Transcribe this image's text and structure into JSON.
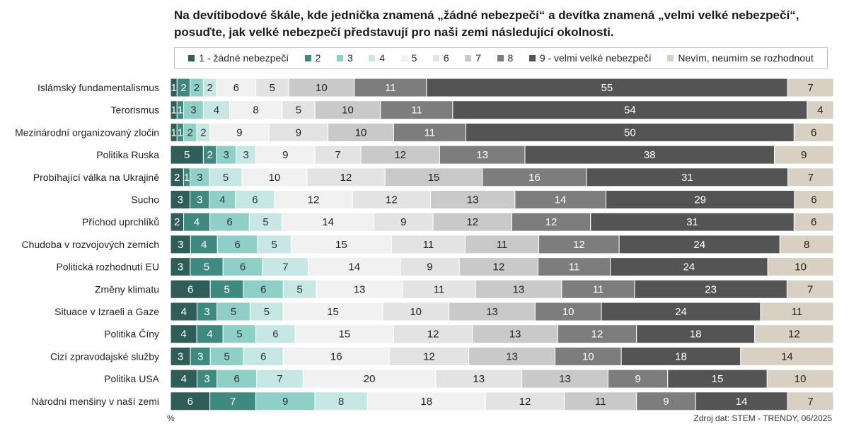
{
  "chart_data": {
    "type": "bar",
    "orientation": "horizontal",
    "stacked": "100%",
    "title": "Na devítibodové škále, kde jednička znamená „žádné nebezpečí“ a devítka znamená „velmi velké nebezpečí“, posuďte, jak velké nebezpečí představují pro naši zemi následující okolnosti.",
    "unit_label": "%",
    "source": "Zdroj dat: STEM - TRENDY, 06/2025",
    "legend_position": "top",
    "categories": [
      "Islámský fundamentalismus",
      "Terorismus",
      "Mezinárodní organizovaný zločin",
      "Politika Ruska",
      "Probíhající válka na Ukrajině",
      "Sucho",
      "Příchod uprchlíků",
      "Chudoba v rozvojových zemích",
      "Politická rozhodnutí EU",
      "Změny klimatu",
      "Situace v Izraeli a Gaze",
      "Politika Číny",
      "Cizí zpravodajské služby",
      "Politika USA",
      "Národní menšiny v naší zemi"
    ],
    "series": [
      {
        "name": "1 - žádné nebezpečí",
        "color": "#2e5e57",
        "values": [
          1,
          1,
          1,
          5,
          2,
          3,
          2,
          3,
          3,
          6,
          4,
          4,
          3,
          4,
          6
        ]
      },
      {
        "name": "2",
        "color": "#3f8a80",
        "values": [
          2,
          1,
          1,
          2,
          1,
          3,
          4,
          4,
          5,
          5,
          3,
          4,
          3,
          3,
          7
        ]
      },
      {
        "name": "3",
        "color": "#8ecfc7",
        "values": [
          2,
          3,
          2,
          3,
          3,
          4,
          6,
          6,
          6,
          6,
          5,
          5,
          5,
          6,
          9
        ]
      },
      {
        "name": "4",
        "color": "#c6e7e3",
        "values": [
          2,
          4,
          2,
          3,
          5,
          6,
          5,
          5,
          7,
          5,
          5,
          6,
          6,
          7,
          8
        ]
      },
      {
        "name": "5",
        "color": "#f1f1f1",
        "values": [
          6,
          8,
          9,
          9,
          10,
          12,
          14,
          15,
          14,
          13,
          15,
          15,
          16,
          20,
          18
        ]
      },
      {
        "name": "6",
        "color": "#e3e3e3",
        "values": [
          5,
          5,
          9,
          7,
          12,
          12,
          9,
          11,
          9,
          11,
          10,
          12,
          12,
          13,
          12
        ]
      },
      {
        "name": "7",
        "color": "#c9c9c9",
        "values": [
          10,
          10,
          10,
          12,
          15,
          13,
          12,
          11,
          12,
          13,
          13,
          13,
          13,
          13,
          11
        ]
      },
      {
        "name": "8",
        "color": "#7d7d7d",
        "values": [
          11,
          11,
          11,
          13,
          16,
          14,
          12,
          12,
          11,
          11,
          10,
          12,
          10,
          9,
          9
        ]
      },
      {
        "name": "9 - velmi velké nebezpečí",
        "color": "#545454",
        "values": [
          55,
          54,
          50,
          38,
          31,
          29,
          31,
          24,
          24,
          23,
          24,
          18,
          18,
          15,
          14
        ]
      },
      {
        "name": "Nevím, neumím se rozhodnout",
        "color": "#d8d0c3",
        "values": [
          7,
          4,
          6,
          9,
          7,
          6,
          6,
          8,
          10,
          7,
          11,
          12,
          14,
          10,
          7
        ]
      }
    ],
    "label_colors": [
      "#ffffff",
      "#ffffff",
      "#333333",
      "#333333",
      "#222222",
      "#222222",
      "#222222",
      "#ffffff",
      "#ffffff",
      "#222222"
    ],
    "grid": false
  }
}
